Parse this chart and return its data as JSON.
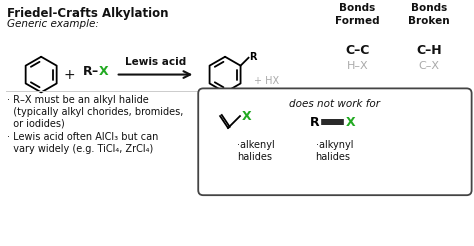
{
  "title": "Friedel-Crafts Alkylation",
  "generic_example": "Generic example:",
  "background_color": "#ffffff",
  "text_color": "#111111",
  "green_color": "#22aa22",
  "gray_color": "#aaaaaa",
  "bonds_formed_header": "Bonds\nFormed",
  "bonds_broken_header": "Bonds\nBroken",
  "bonds_formed": [
    "C–C",
    "H–X"
  ],
  "bonds_broken": [
    "C–H",
    "C–X"
  ],
  "bonds_formed_colors": [
    "#111111",
    "#aaaaaa"
  ],
  "bonds_broken_colors": [
    "#111111",
    "#aaaaaa"
  ],
  "lewis_acid_label": "Lewis acid",
  "plus_hx_label": "+ HX",
  "bullet1_line1": "· R–X must be an alkyl halide",
  "bullet1_line2": "  (typically alkyl chorides, bromides,",
  "bullet1_line3": "  or iodides)",
  "bullet2_line1": "· Lewis acid often AlCl₃ but can",
  "bullet2_line2": "  vary widely (e.g. TiCl₄, ZrCl₄)",
  "does_not_work": "does not work for",
  "alkenyl_label": "·alkenyl\nhalides",
  "alkynyl_label": "·alkynyl\nhalides"
}
